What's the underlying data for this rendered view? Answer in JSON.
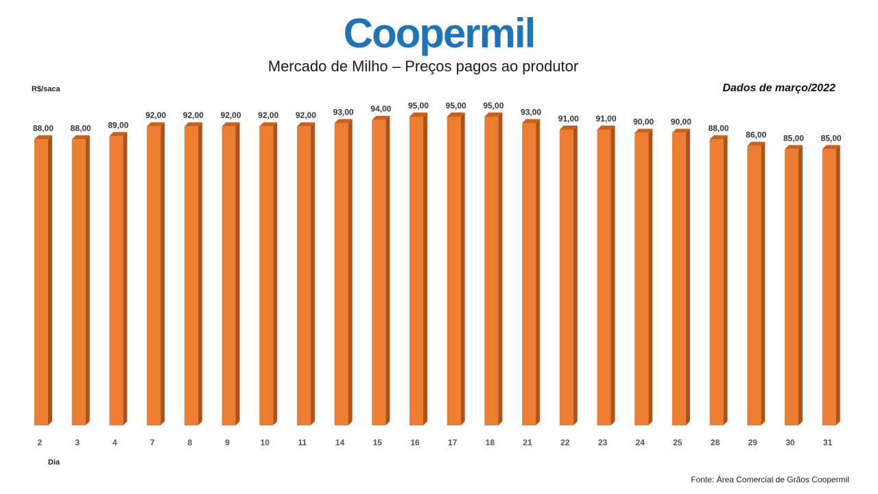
{
  "brand": {
    "logo_text": "Coopermil",
    "logo_color": "#1f73b7"
  },
  "chart_data": {
    "type": "bar",
    "title": "Mercado de Milho – Preços pagos ao produtor",
    "ylabel": "R$/saca",
    "xlabel": "Dia",
    "period_label": "Dados de março/2022",
    "source": "Fonte:  Área Comercial de Grãos Coopermil",
    "categories": [
      "2",
      "3",
      "4",
      "7",
      "8",
      "9",
      "10",
      "11",
      "14",
      "15",
      "16",
      "17",
      "18",
      "21",
      "22",
      "23",
      "24",
      "25",
      "28",
      "29",
      "30",
      "31"
    ],
    "values": [
      88,
      88,
      89,
      92,
      92,
      92,
      92,
      92,
      93,
      94,
      95,
      95,
      95,
      93,
      91,
      91,
      90,
      90,
      88,
      86,
      85,
      85
    ],
    "value_labels": [
      "88,00",
      "88,00",
      "89,00",
      "92,00",
      "92,00",
      "92,00",
      "92,00",
      "92,00",
      "93,00",
      "94,00",
      "95,00",
      "95,00",
      "95,00",
      "93,00",
      "91,00",
      "91,00",
      "90,00",
      "90,00",
      "88,00",
      "86,00",
      "85,00",
      "85,00"
    ],
    "ylim": [
      0,
      95
    ],
    "grid": false,
    "legend": "none",
    "colors": {
      "front": "#ed7d31",
      "side": "#a9531d",
      "top": "#c8621f"
    }
  }
}
